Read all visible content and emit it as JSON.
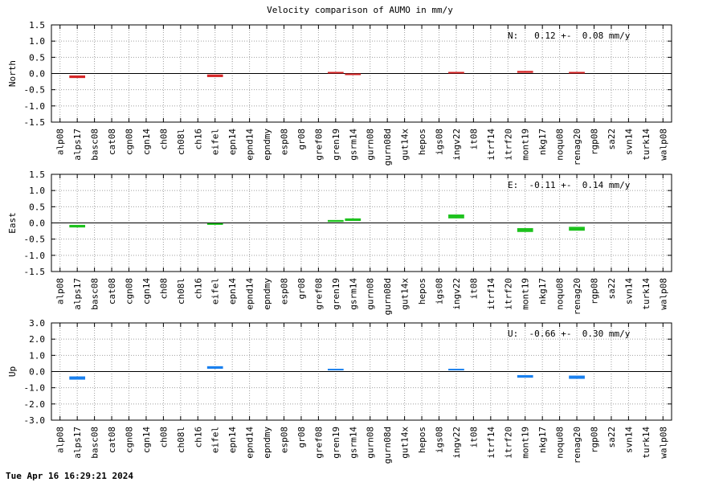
{
  "title": "Velocity comparison of AUMO in mm/y",
  "footer": "Tue Apr 16 16:29:21 2024",
  "chart_data": [
    {
      "type": "bar",
      "ylabel": "North",
      "ylim": [
        -1.5,
        1.5
      ],
      "yticks": [
        "1.5",
        "1.0",
        "0.5",
        "0.0",
        "-0.5",
        "-1.0",
        "-1.5"
      ],
      "grid": true,
      "annotation": "N:   0.12 +-  0.08 mm/y",
      "color": "#d62728",
      "categories": [
        "alp08",
        "alps17",
        "basc08",
        "cat08",
        "cgn08",
        "cgn14",
        "ch08",
        "ch08l",
        "ch16",
        "eifel",
        "epn14",
        "epnd14",
        "epndmy",
        "esp08",
        "gr08",
        "gref08",
        "gren19",
        "gsrm14",
        "gurn08",
        "gurn08d",
        "gut14x",
        "hepos",
        "igs08",
        "ingv22",
        "it08",
        "itrf14",
        "itrf20",
        "mont19",
        "nkg17",
        "noqu08",
        "renag20",
        "rgp08",
        "sa22",
        "svn14",
        "turk14",
        "walp08"
      ],
      "values": [
        null,
        -0.1,
        null,
        null,
        null,
        null,
        null,
        null,
        null,
        -0.07,
        null,
        null,
        null,
        null,
        null,
        null,
        0.03,
        -0.02,
        null,
        null,
        null,
        null,
        null,
        0.03,
        null,
        null,
        null,
        0.05,
        null,
        null,
        0.03,
        null,
        null,
        null,
        null,
        null
      ],
      "errors": [
        null,
        0.04,
        null,
        null,
        null,
        null,
        null,
        null,
        null,
        0.04,
        null,
        null,
        null,
        null,
        null,
        null,
        0.02,
        0.02,
        null,
        null,
        null,
        null,
        null,
        0.02,
        null,
        null,
        null,
        0.03,
        null,
        null,
        0.02,
        null,
        null,
        null,
        null,
        null
      ]
    },
    {
      "type": "bar",
      "ylabel": "East",
      "ylim": [
        -1.5,
        1.5
      ],
      "yticks": [
        "1.5",
        "1.0",
        "0.5",
        "0.0",
        "-0.5",
        "-1.0",
        "-1.5"
      ],
      "grid": true,
      "annotation": "E:  -0.11 +-  0.14 mm/y",
      "color": "#1ec21e",
      "categories": [
        "alp08",
        "alps17",
        "basc08",
        "cat08",
        "cgn08",
        "cgn14",
        "ch08",
        "ch08l",
        "ch16",
        "eifel",
        "epn14",
        "epnd14",
        "epndmy",
        "esp08",
        "gr08",
        "gref08",
        "gren19",
        "gsrm14",
        "gurn08",
        "gurn08d",
        "gut14x",
        "hepos",
        "igs08",
        "ingv22",
        "it08",
        "itrf14",
        "itrf20",
        "mont19",
        "nkg17",
        "noqu08",
        "renag20",
        "rgp08",
        "sa22",
        "svn14",
        "turk14",
        "walp08"
      ],
      "values": [
        null,
        -0.1,
        null,
        null,
        null,
        null,
        null,
        null,
        null,
        -0.03,
        null,
        null,
        null,
        null,
        null,
        null,
        0.06,
        0.1,
        null,
        null,
        null,
        null,
        null,
        0.2,
        null,
        null,
        null,
        -0.22,
        null,
        null,
        -0.18,
        null,
        null,
        null,
        null,
        null
      ],
      "errors": [
        null,
        0.04,
        null,
        null,
        null,
        null,
        null,
        null,
        null,
        0.02,
        null,
        null,
        null,
        null,
        null,
        null,
        0.03,
        0.04,
        null,
        null,
        null,
        null,
        null,
        0.06,
        null,
        null,
        null,
        0.06,
        null,
        null,
        0.06,
        null,
        null,
        null,
        null,
        null
      ]
    },
    {
      "type": "bar",
      "ylabel": "Up",
      "ylim": [
        -3.0,
        3.0
      ],
      "yticks": [
        "3.0",
        "2.0",
        "1.0",
        "0.0",
        "-1.0",
        "-2.0",
        "-3.0"
      ],
      "grid": true,
      "annotation": "U:  -0.66 +-  0.30 mm/y",
      "color": "#1a80ee",
      "categories": [
        "alp08",
        "alps17",
        "basc08",
        "cat08",
        "cgn08",
        "cgn14",
        "ch08",
        "ch08l",
        "ch16",
        "eifel",
        "epn14",
        "epnd14",
        "epndmy",
        "esp08",
        "gr08",
        "gref08",
        "gren19",
        "gsrm14",
        "gurn08",
        "gurn08d",
        "gut14x",
        "hepos",
        "igs08",
        "ingv22",
        "it08",
        "itrf14",
        "itrf20",
        "mont19",
        "nkg17",
        "noqu08",
        "renag20",
        "rgp08",
        "sa22",
        "svn14",
        "turk14",
        "walp08"
      ],
      "values": [
        null,
        -0.4,
        null,
        null,
        null,
        null,
        null,
        null,
        null,
        0.25,
        null,
        null,
        null,
        null,
        null,
        null,
        0.12,
        null,
        null,
        null,
        null,
        null,
        null,
        0.12,
        null,
        null,
        null,
        -0.3,
        null,
        null,
        -0.35,
        null,
        null,
        null,
        null,
        null
      ],
      "errors": [
        null,
        0.1,
        null,
        null,
        null,
        null,
        null,
        null,
        null,
        0.08,
        null,
        null,
        null,
        null,
        null,
        null,
        0.05,
        null,
        null,
        null,
        null,
        null,
        null,
        0.05,
        null,
        null,
        null,
        0.08,
        null,
        null,
        0.1,
        null,
        null,
        null,
        null,
        null
      ]
    }
  ]
}
